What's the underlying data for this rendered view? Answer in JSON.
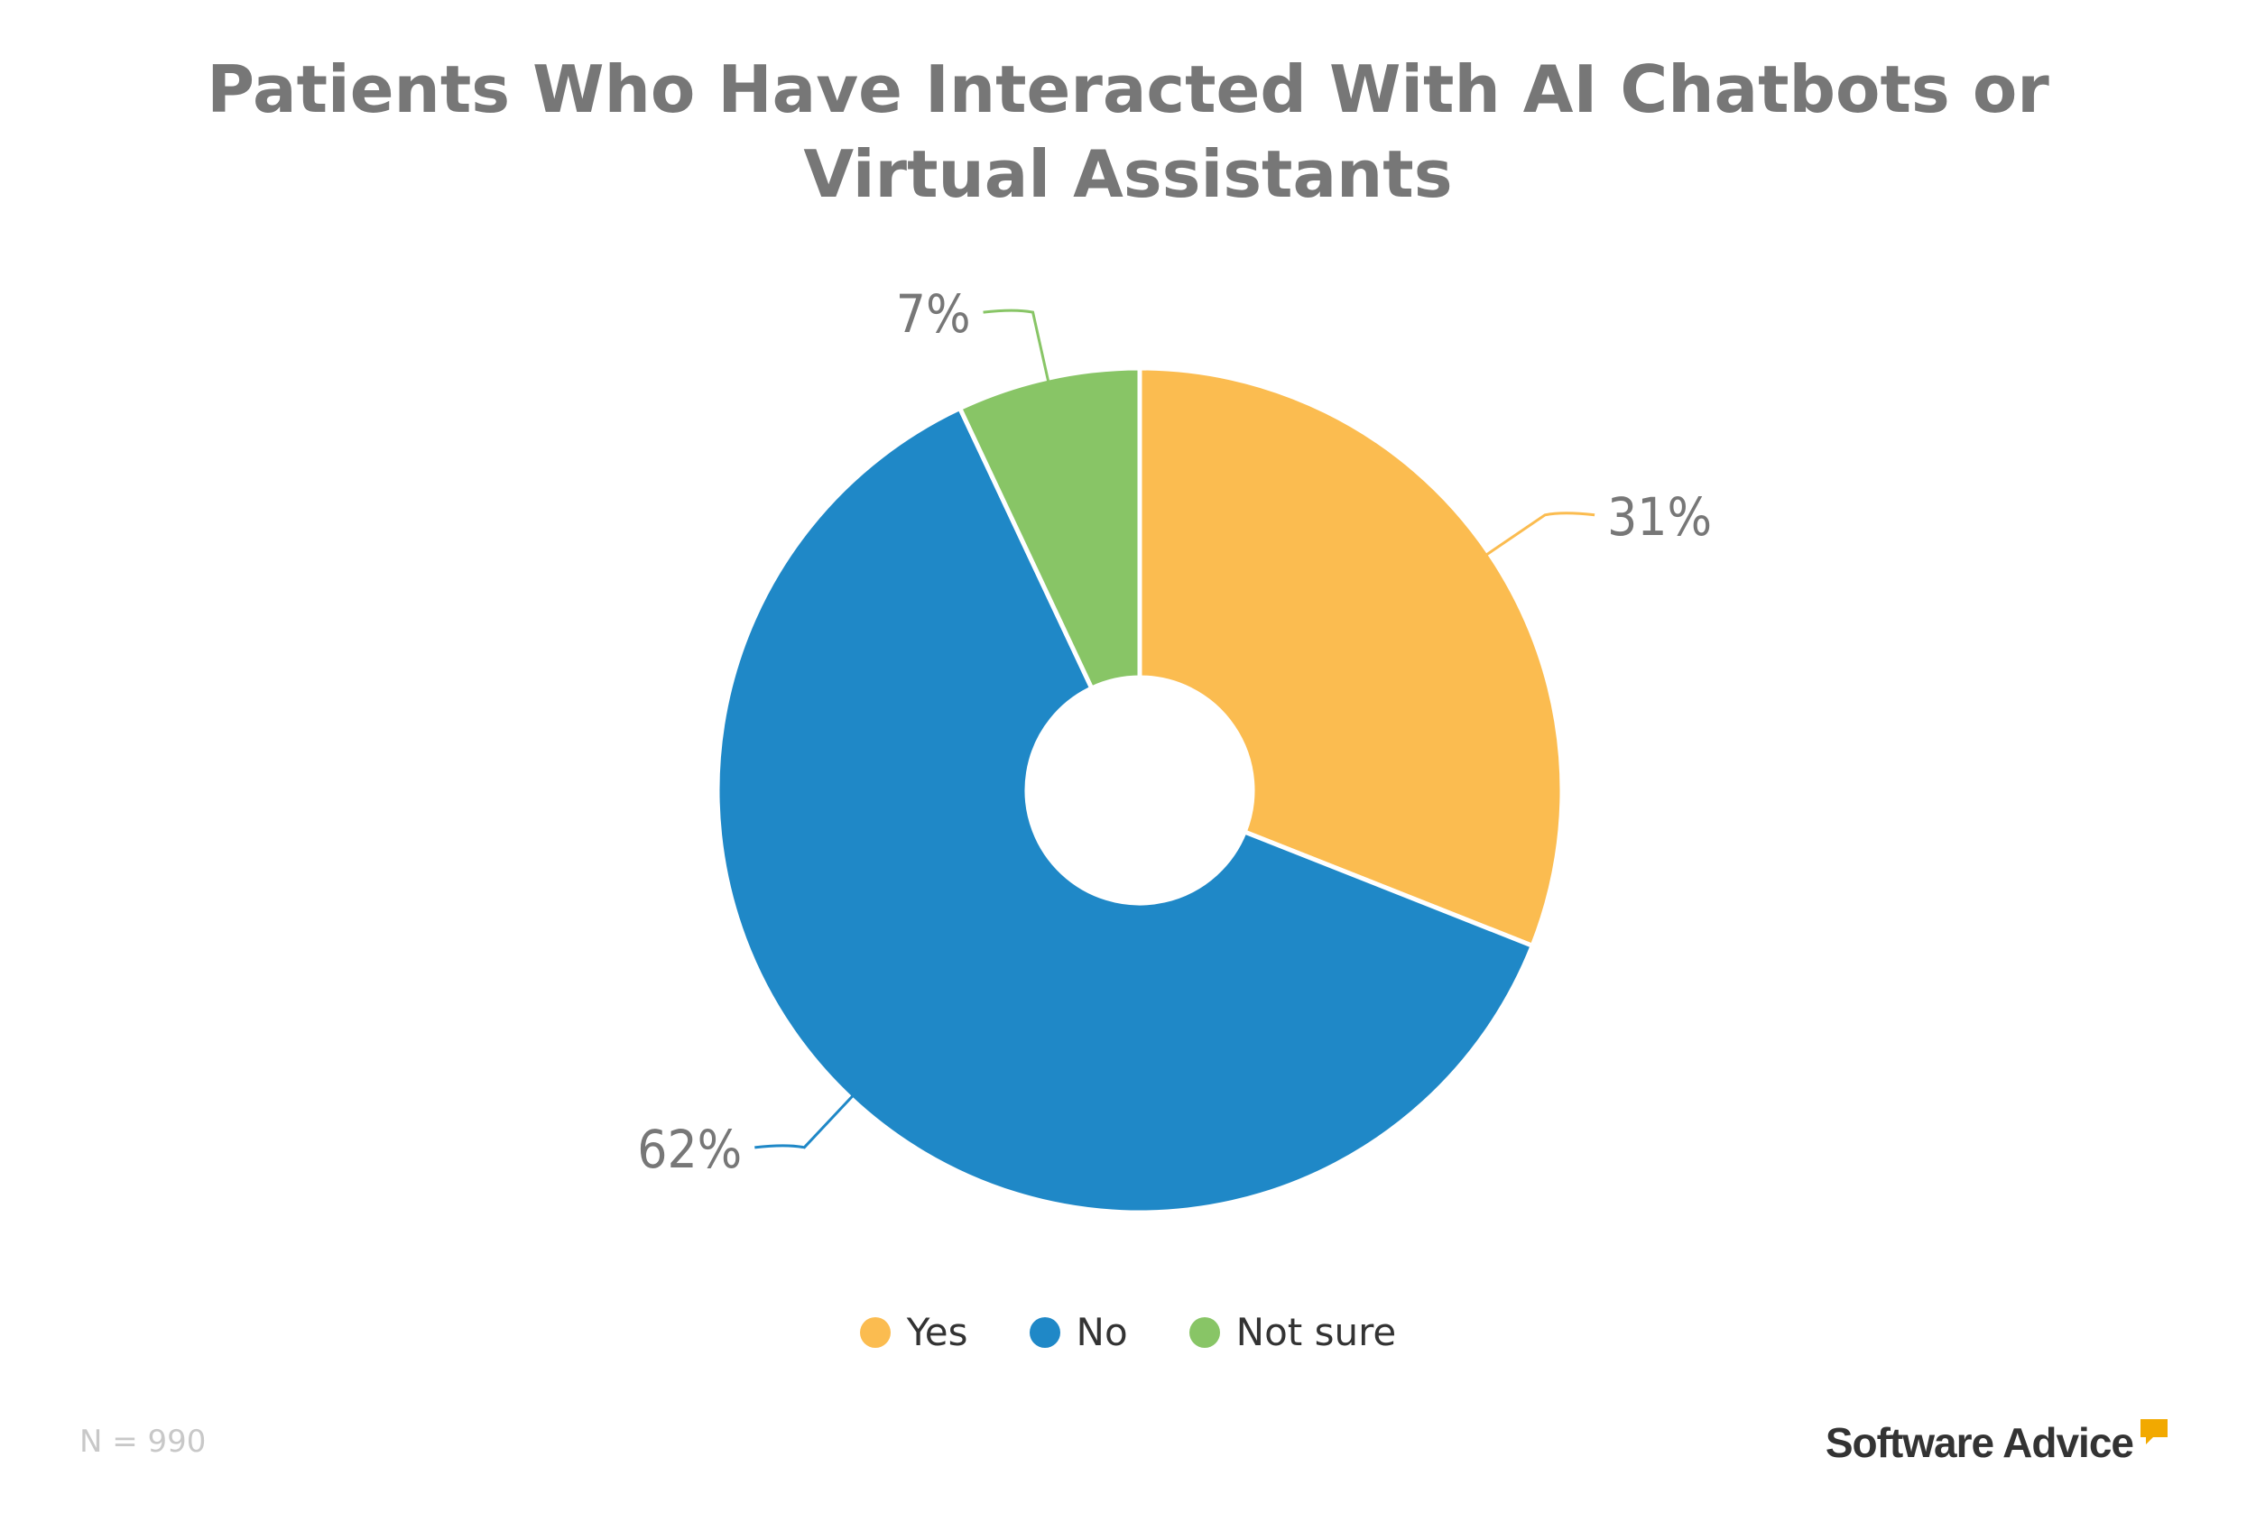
{
  "chart_data": {
    "type": "pie",
    "title": "Patients Who Have Interacted With AI Chatbots or Virtual Assistants",
    "categories": [
      "Yes",
      "No",
      "Not sure"
    ],
    "values": [
      31,
      62,
      7
    ],
    "labels": [
      "31%",
      "62%",
      "7%"
    ],
    "colors": [
      "#FBBC50",
      "#1F88C7",
      "#88C566"
    ],
    "legend_position": "bottom",
    "donut": true
  },
  "legend": {
    "items": [
      {
        "label": "Yes",
        "color": "#FBBC50"
      },
      {
        "label": "No",
        "color": "#1F88C7"
      },
      {
        "label": "Not sure",
        "color": "#88C566"
      }
    ]
  },
  "footer": {
    "sample_note": "N = 990",
    "brand": "Software Advice",
    "brand_accent": "#F2A900"
  }
}
